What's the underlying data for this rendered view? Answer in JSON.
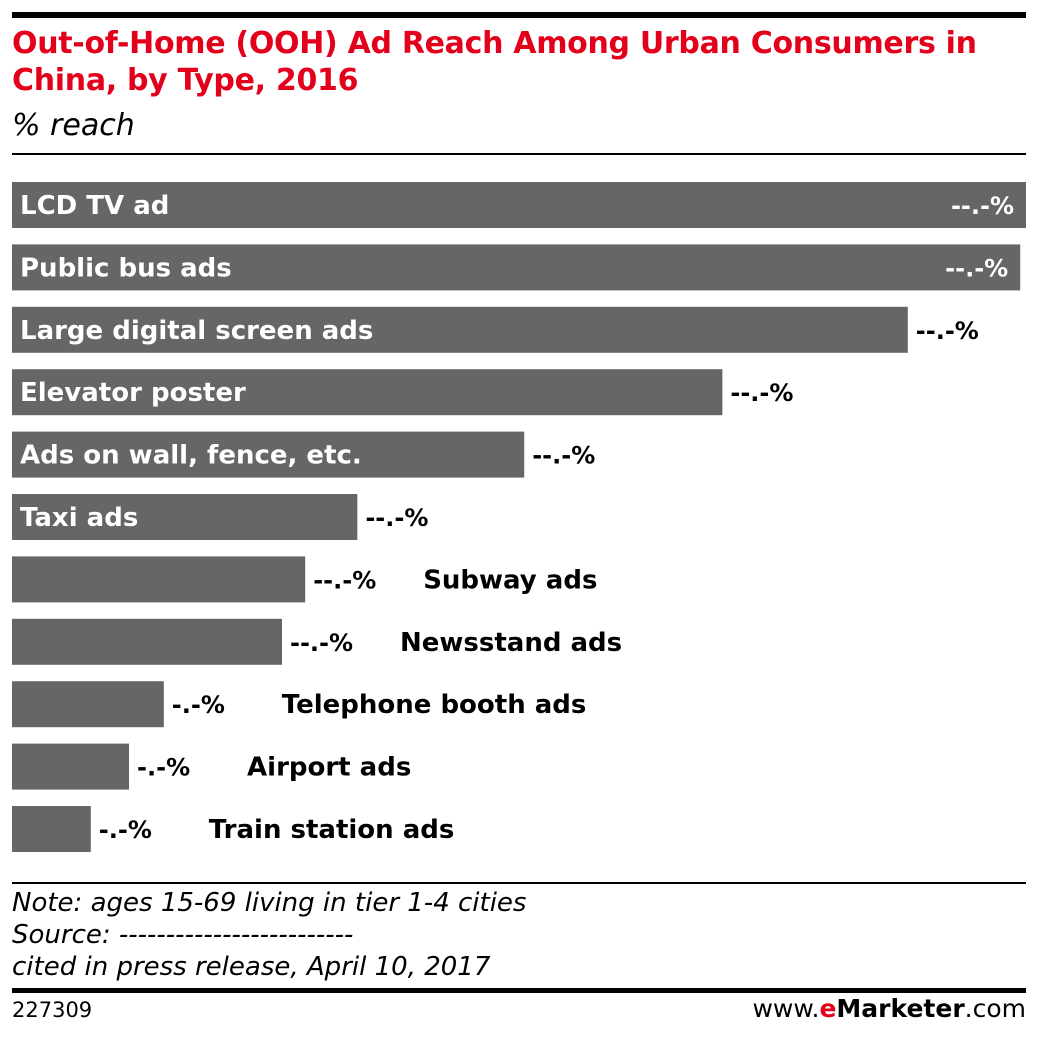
{
  "header": {
    "title": "Out-of-Home (OOH) Ad Reach Among Urban Consumers in China, by Type, 2016",
    "subtitle": "% reach"
  },
  "chart_data": {
    "type": "bar",
    "orientation": "horizontal",
    "categories": [
      "LCD TV ad",
      "Public bus ads",
      "Large digital screen ads",
      "Elevator poster",
      "Ads on wall, fence, etc.",
      "Taxi ads",
      "Subway ads",
      "Newsstand ads",
      "Telephone booth ads",
      "Airport ads",
      "Train station ads"
    ],
    "values": [
      87.5,
      87.0,
      77.3,
      61.3,
      44.2,
      29.8,
      25.3,
      23.3,
      13.1,
      10.1,
      6.8
    ],
    "value_labels": [
      "--.-%",
      "--.-%",
      "--.-%",
      "--.-%",
      "--.-%",
      "--.-%",
      "--.-%",
      "--.-%",
      "-.-%",
      "-.-%",
      "-.-%"
    ],
    "xlim": [
      0,
      87.5
    ],
    "grid": false,
    "legend": "none",
    "bar_color": "#666666"
  },
  "footer": {
    "note": "Note: ages 15-69 living in tier 1-4 cities",
    "source": "Source: -------------------------",
    "cited": "cited in press release, April 10, 2017",
    "chart_id": "227309",
    "brand_prefix": "www.",
    "brand_e": "e",
    "brand_name": "Marketer",
    "brand_suffix": ".com"
  },
  "colors": {
    "accent": "#e3001b",
    "bar": "#666666",
    "text": "#000000"
  }
}
